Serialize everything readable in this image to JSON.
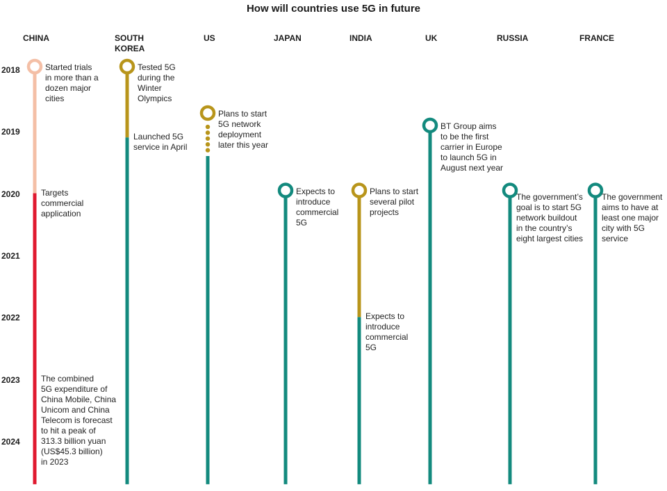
{
  "chart_data": {
    "type": "timeline",
    "title": "How will countries use 5G in future",
    "years": [
      "2018",
      "2019",
      "2020",
      "2021",
      "2022",
      "2023",
      "2024"
    ],
    "colors": {
      "planned_early": "#f4bfa6",
      "china_commercial": "#e0192f",
      "trial": "#b8951b",
      "deployment": "#138a7e"
    },
    "countries": [
      {
        "name": "CHINA",
        "segments": [
          {
            "from": 2018.0,
            "to": 2020.0,
            "color": "planned_early",
            "style": "solid"
          },
          {
            "from": 2020.0,
            "to": 2024.7,
            "color": "china_commercial",
            "style": "solid"
          }
        ],
        "start_marker": {
          "at": 2018.0,
          "color": "planned_early"
        },
        "events": [
          {
            "at": 2018.0,
            "text": "Started trials\nin more than a\ndozen major\ncities"
          },
          {
            "at": 2020.0,
            "text": "Targets\ncommercial\napplication"
          },
          {
            "at": 2023.0,
            "text": "The combined\n5G expenditure of\nChina Mobile, China\nUnicom and China\nTelecom is forecast\nto hit a peak of\n313.3 billion yuan\n(US$45.3 billion)\nin 2023"
          }
        ]
      },
      {
        "name": "SOUTH\nKOREA",
        "segments": [
          {
            "from": 2018.0,
            "to": 2019.1,
            "color": "trial",
            "style": "solid"
          },
          {
            "from": 2019.1,
            "to": 2024.7,
            "color": "deployment",
            "style": "solid"
          }
        ],
        "start_marker": {
          "at": 2018.0,
          "color": "trial"
        },
        "events": [
          {
            "at": 2018.0,
            "text": "Tested 5G\nduring the\nWinter\nOlympics"
          },
          {
            "at": 2019.1,
            "text": "Launched 5G\nservice in April"
          }
        ]
      },
      {
        "name": "US",
        "segments": [
          {
            "from": 2018.75,
            "to": 2019.4,
            "color": "trial",
            "style": "dotted"
          },
          {
            "from": 2019.4,
            "to": 2024.7,
            "color": "deployment",
            "style": "solid"
          }
        ],
        "start_marker": {
          "at": 2018.75,
          "color": "trial"
        },
        "events": [
          {
            "at": 2018.75,
            "text": "Plans to start\n5G network\ndeployment\nlater this year"
          }
        ]
      },
      {
        "name": "JAPAN",
        "segments": [
          {
            "from": 2020.0,
            "to": 2024.7,
            "color": "deployment",
            "style": "solid"
          }
        ],
        "start_marker": {
          "at": 2020.0,
          "color": "deployment"
        },
        "events": [
          {
            "at": 2020.0,
            "text": "Expects to\nintroduce\ncommercial\n5G"
          }
        ]
      },
      {
        "name": "INDIA",
        "segments": [
          {
            "from": 2020.0,
            "to": 2022.0,
            "color": "trial",
            "style": "solid"
          },
          {
            "from": 2022.0,
            "to": 2024.7,
            "color": "deployment",
            "style": "solid"
          }
        ],
        "start_marker": {
          "at": 2020.0,
          "color": "trial"
        },
        "events": [
          {
            "at": 2020.0,
            "text": "Plans to start\nseveral pilot\nprojects"
          },
          {
            "at": 2022.0,
            "text": "Expects to\nintroduce\ncommercial\n5G"
          }
        ]
      },
      {
        "name": "UK",
        "segments": [
          {
            "from": 2018.95,
            "to": 2024.7,
            "color": "deployment",
            "style": "solid"
          }
        ],
        "start_marker": {
          "at": 2018.95,
          "color": "deployment"
        },
        "events": [
          {
            "at": 2018.95,
            "text": "BT Group aims\nto be the first\ncarrier in Europe\nto launch 5G in\nAugust next year"
          }
        ]
      },
      {
        "name": "RUSSIA",
        "segments": [
          {
            "from": 2020.0,
            "to": 2024.7,
            "color": "deployment",
            "style": "solid"
          }
        ],
        "start_marker": {
          "at": 2020.0,
          "color": "deployment"
        },
        "events": [
          {
            "at": 2020.0,
            "text": "The government’s\ngoal is to start 5G\nnetwork buildout\nin the country’s\neight largest cities"
          }
        ]
      },
      {
        "name": "FRANCE",
        "segments": [
          {
            "from": 2020.0,
            "to": 2024.7,
            "color": "deployment",
            "style": "solid"
          }
        ],
        "start_marker": {
          "at": 2020.0,
          "color": "deployment"
        },
        "events": [
          {
            "at": 2020.0,
            "text": "The government\naims to have at\nleast one major\ncity with 5G\nservice"
          }
        ]
      }
    ]
  }
}
